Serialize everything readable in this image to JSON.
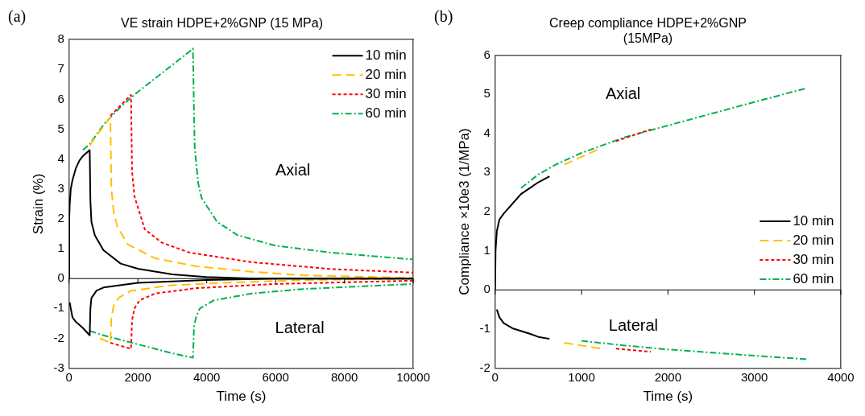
{
  "chart_data": [
    {
      "type": "line",
      "title": "VE strain HDPE+2%GNP (15 MPa)",
      "xlabel": "Time (s)",
      "ylabel": "Strain (%)",
      "xlim": [
        0,
        10000
      ],
      "xticks": [
        0,
        2000,
        4000,
        6000,
        8000,
        10000
      ],
      "ylim": [
        -3,
        8
      ],
      "yticks": [
        -3,
        -2,
        -1,
        0,
        1,
        2,
        3,
        4,
        5,
        6,
        7,
        8
      ],
      "grid": false,
      "legend": "top right",
      "marker": "none",
      "ref_lines": [
        {
          "axis": "y",
          "value": 0,
          "color": "#000000"
        }
      ],
      "annotations": [
        "(a)",
        "Axial",
        "Lateral"
      ],
      "series": [
        {
          "name": "10 min",
          "color": "#000000",
          "line_style": "solid",
          "x": [
            0,
            5,
            20,
            50,
            100,
            200,
            300,
            400,
            600,
            620,
            650,
            750,
            1000,
            1500,
            2000,
            3000,
            4000,
            5400,
            10000
          ],
          "values": [
            0,
            2.0,
            2.5,
            3.0,
            3.3,
            3.7,
            3.95,
            4.1,
            4.3,
            2.6,
            1.9,
            1.45,
            0.95,
            0.5,
            0.33,
            0.14,
            0.05,
            0,
            0
          ]
        },
        {
          "color": "#000000",
          "line_style": "solid",
          "x": [
            20,
            50,
            100,
            200,
            400,
            600,
            620,
            650,
            800,
            1000,
            2000,
            4000,
            6000,
            10000
          ],
          "values": [
            -0.8,
            -1.0,
            -1.3,
            -1.45,
            -1.65,
            -1.9,
            -1.0,
            -0.65,
            -0.4,
            -0.3,
            -0.14,
            -0.05,
            0,
            0
          ]
        },
        {
          "name": "20 min",
          "color": "#ffc000",
          "line_style": "dashed",
          "x": [
            600,
            800,
            1000,
            1200,
            1230,
            1300,
            1400,
            1700,
            2500,
            3700,
            5300,
            6800,
            10000
          ],
          "values": [
            4.45,
            4.8,
            5.1,
            5.4,
            3.0,
            2.2,
            1.75,
            1.15,
            0.68,
            0.41,
            0.23,
            0.11,
            0.02
          ]
        },
        {
          "color": "#ffc000",
          "line_style": "dashed",
          "x": [
            900,
            1200,
            1230,
            1300,
            1450,
            1800,
            2900,
            4500,
            6800,
            10000
          ],
          "values": [
            -2.0,
            -2.15,
            -1.3,
            -0.9,
            -0.64,
            -0.41,
            -0.23,
            -0.14,
            -0.05,
            0
          ]
        },
        {
          "name": "30 min",
          "color": "#ff0000",
          "line_style": "dotted",
          "x": [
            1200,
            1500,
            1800,
            1830,
            1900,
            2200,
            2700,
            3500,
            5300,
            7600,
            10000
          ],
          "values": [
            5.45,
            5.8,
            6.15,
            3.6,
            2.75,
            1.65,
            1.2,
            0.87,
            0.55,
            0.32,
            0.2
          ]
        },
        {
          "color": "#ff0000",
          "line_style": "dotted",
          "x": [
            1200,
            1500,
            1800,
            1830,
            1900,
            2050,
            2500,
            3700,
            6000,
            10000
          ],
          "values": [
            -2.15,
            -2.25,
            -2.35,
            -1.4,
            -1.0,
            -0.73,
            -0.5,
            -0.32,
            -0.18,
            -0.07
          ]
        },
        {
          "name": "60 min",
          "color": "#00b050",
          "line_style": "dashdot",
          "x": [
            400,
            600,
            1000,
            1500,
            2000,
            2500,
            3000,
            3500,
            3600,
            3630,
            3650,
            3750,
            3850,
            4300,
            4900,
            6000,
            7600,
            10000
          ],
          "values": [
            4.3,
            4.5,
            5.15,
            5.75,
            6.25,
            6.7,
            7.15,
            7.6,
            7.7,
            5.5,
            4.4,
            3.2,
            2.7,
            1.9,
            1.45,
            1.1,
            0.87,
            0.64
          ]
        },
        {
          "color": "#00b050",
          "line_style": "dashdot",
          "x": [
            600,
            1000,
            1500,
            2000,
            2500,
            3000,
            3600,
            3630,
            3700,
            3800,
            4200,
            5300,
            6800,
            10000
          ],
          "values": [
            -1.75,
            -1.9,
            -2.05,
            -2.2,
            -2.35,
            -2.5,
            -2.65,
            -1.6,
            -1.25,
            -1.0,
            -0.73,
            -0.5,
            -0.35,
            -0.18
          ]
        }
      ]
    },
    {
      "type": "line",
      "title": "Creep compliance HDPE+2%GNP (15MPa)",
      "xlabel": "Time (s)",
      "ylabel": "Compliance ×10e3 (1/MPa)",
      "xlim": [
        0,
        4000
      ],
      "xticks": [
        0,
        1000,
        2000,
        3000,
        4000
      ],
      "ylim": [
        -2,
        6
      ],
      "yticks": [
        -2,
        -1,
        0,
        1,
        2,
        3,
        4,
        5,
        6
      ],
      "grid": false,
      "legend": "right",
      "marker": "none",
      "ref_lines": [
        {
          "axis": "y",
          "value": 0,
          "color": "#000000"
        }
      ],
      "annotations": [
        "(b)",
        "Axial",
        "Lateral"
      ],
      "series": [
        {
          "name": "10 min",
          "color": "#000000",
          "line_style": "solid",
          "x": [
            0,
            5,
            20,
            50,
            100,
            200,
            300,
            400,
            500,
            630
          ],
          "values": [
            0,
            1.0,
            1.5,
            1.8,
            1.95,
            2.2,
            2.45,
            2.6,
            2.75,
            2.9
          ]
        },
        {
          "color": "#000000",
          "line_style": "solid",
          "x": [
            20,
            50,
            100,
            200,
            400,
            500,
            630
          ],
          "values": [
            -0.5,
            -0.7,
            -0.85,
            -0.98,
            -1.12,
            -1.2,
            -1.25
          ]
        },
        {
          "name": "20 min",
          "color": "#ffc000",
          "line_style": "dashed",
          "x": [
            800,
            1000,
            1200
          ],
          "values": [
            3.2,
            3.4,
            3.6
          ]
        },
        {
          "color": "#ffc000",
          "line_style": "dashed",
          "x": [
            800,
            1000,
            1230
          ],
          "values": [
            -1.35,
            -1.42,
            -1.5
          ]
        },
        {
          "name": "30 min",
          "color": "#ff0000",
          "line_style": "dotted",
          "x": [
            1400,
            1800
          ],
          "values": [
            3.8,
            4.1
          ]
        },
        {
          "color": "#ff0000",
          "line_style": "dotted",
          "x": [
            1400,
            1800
          ],
          "values": [
            -1.5,
            -1.58
          ]
        },
        {
          "name": "60 min",
          "color": "#00b050",
          "line_style": "dashdot",
          "x": [
            300,
            500,
            700,
            1000,
            1500,
            2000,
            2500,
            3000,
            3600
          ],
          "values": [
            2.6,
            2.95,
            3.2,
            3.5,
            3.9,
            4.2,
            4.5,
            4.8,
            5.15
          ]
        },
        {
          "color": "#00b050",
          "line_style": "dashdot",
          "x": [
            1000,
            1500,
            2000,
            2500,
            3000,
            3600
          ],
          "values": [
            -1.3,
            -1.42,
            -1.52,
            -1.6,
            -1.68,
            -1.77
          ]
        }
      ]
    }
  ]
}
